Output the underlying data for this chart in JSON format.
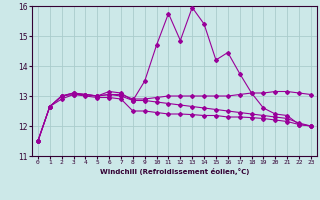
{
  "xlabel": "Windchill (Refroidissement éolien,°C)",
  "bg_color": "#cce8e8",
  "grid_color": "#aacccc",
  "line_color": "#990099",
  "xmin": -0.5,
  "xmax": 23.5,
  "ymin": 11,
  "ymax": 16,
  "yticks": [
    11,
    12,
    13,
    14,
    15,
    16
  ],
  "xticks": [
    0,
    1,
    2,
    3,
    4,
    5,
    6,
    7,
    8,
    9,
    10,
    11,
    12,
    13,
    14,
    15,
    16,
    17,
    18,
    19,
    20,
    21,
    22,
    23
  ],
  "series1_x": [
    0,
    1,
    2,
    3,
    4,
    5,
    6,
    7,
    8,
    9,
    10,
    11,
    12,
    13,
    14,
    15,
    16,
    17,
    18,
    19,
    20,
    21,
    22,
    23
  ],
  "series1_y": [
    11.5,
    12.65,
    12.9,
    13.05,
    13.05,
    13.0,
    13.15,
    13.1,
    12.85,
    13.5,
    14.7,
    15.75,
    14.85,
    15.95,
    15.4,
    14.2,
    14.45,
    13.75,
    13.1,
    12.6,
    12.4,
    12.35,
    12.05,
    12.0
  ],
  "series2_x": [
    0,
    1,
    2,
    3,
    4,
    5,
    6,
    7,
    8,
    9,
    10,
    11,
    12,
    13,
    14,
    15,
    16,
    17,
    18,
    19,
    20,
    21,
    22,
    23
  ],
  "series2_y": [
    11.5,
    12.65,
    13.0,
    13.1,
    13.05,
    13.0,
    13.05,
    13.0,
    12.85,
    12.85,
    12.8,
    12.75,
    12.7,
    12.65,
    12.6,
    12.55,
    12.5,
    12.45,
    12.4,
    12.35,
    12.3,
    12.25,
    12.1,
    12.0
  ],
  "series3_x": [
    0,
    1,
    2,
    3,
    4,
    5,
    6,
    7,
    8,
    9,
    10,
    11,
    12,
    13,
    14,
    15,
    16,
    17,
    18,
    19,
    20,
    21,
    22,
    23
  ],
  "series3_y": [
    11.5,
    12.65,
    13.0,
    13.1,
    13.05,
    13.0,
    13.05,
    13.05,
    12.9,
    12.9,
    12.95,
    13.0,
    13.0,
    13.0,
    13.0,
    13.0,
    13.0,
    13.05,
    13.1,
    13.1,
    13.15,
    13.15,
    13.1,
    13.05
  ],
  "series4_x": [
    0,
    1,
    2,
    3,
    4,
    5,
    6,
    7,
    8,
    9,
    10,
    11,
    12,
    13,
    14,
    15,
    16,
    17,
    18,
    19,
    20,
    21,
    22,
    23
  ],
  "series4_y": [
    11.5,
    12.65,
    13.0,
    13.05,
    13.0,
    12.95,
    12.95,
    12.9,
    12.5,
    12.5,
    12.45,
    12.4,
    12.4,
    12.38,
    12.35,
    12.35,
    12.3,
    12.3,
    12.28,
    12.25,
    12.2,
    12.15,
    12.05,
    12.0
  ]
}
